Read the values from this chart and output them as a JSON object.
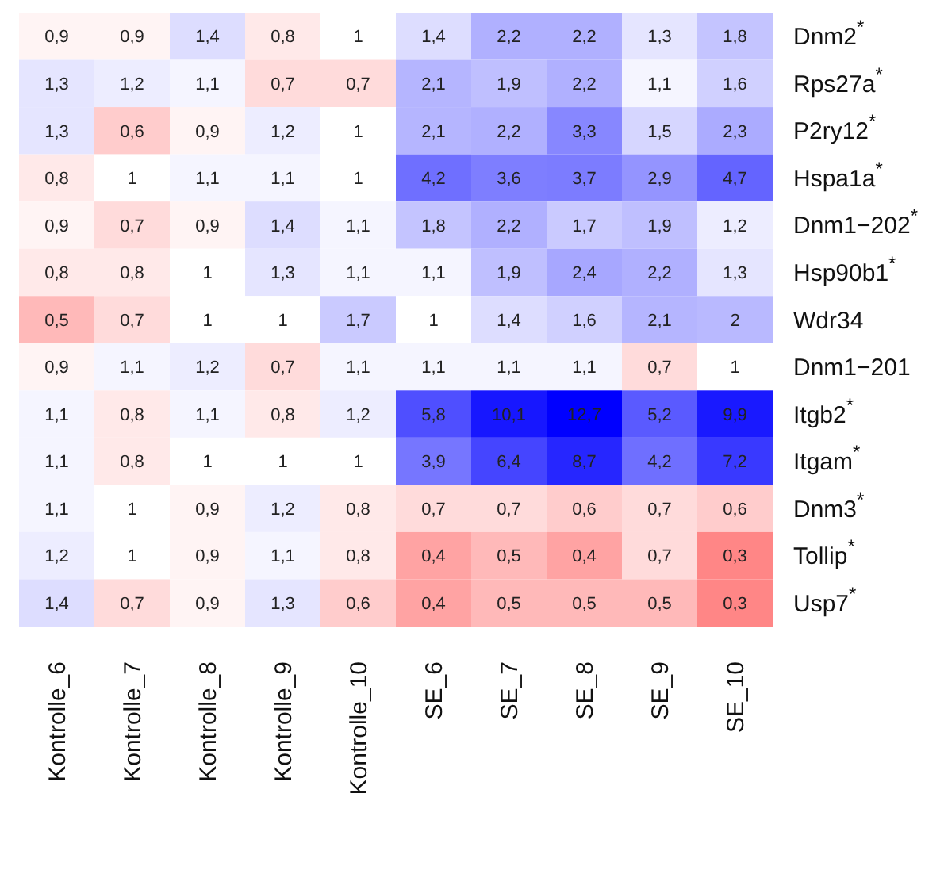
{
  "chart_data": {
    "type": "heatmap",
    "categories": [
      "Kontrolle_6",
      "Kontrolle_7",
      "Kontrolle_8",
      "Kontrolle_9",
      "Kontrolle_10",
      "SE_6",
      "SE_7",
      "SE_8",
      "SE_9",
      "SE_10"
    ],
    "y_categories": [
      "Dnm2$^{*}$",
      "Rps27a$^{*}$",
      "P2ry12$^{*}$",
      "Hspa1a$^{*}$",
      "Dnm1−202$^{*}$",
      "Hsp90b1$^{*}$",
      "Wdr34",
      "Dnm1−201",
      "Itgb2$^{*}$",
      "Itgam$^{*}$",
      "Dnm3$^{*}$",
      "Tollip$^{*}$",
      "Usp7$^{*}$"
    ],
    "cells": [
      [
        0.9,
        0.9,
        1.4,
        0.8,
        1,
        1.4,
        2.2,
        2.2,
        1.3,
        1.8
      ],
      [
        1.3,
        1.2,
        1.1,
        0.7,
        0.7,
        2.1,
        1.9,
        2.2,
        1.1,
        1.6
      ],
      [
        1.3,
        0.6,
        0.9,
        1.2,
        1,
        2.1,
        2.2,
        3.3,
        1.5,
        2.3
      ],
      [
        0.8,
        1,
        1.1,
        1.1,
        1,
        4.2,
        3.6,
        3.7,
        2.9,
        4.7
      ],
      [
        0.9,
        0.7,
        0.9,
        1.4,
        1.1,
        1.8,
        2.2,
        1.7,
        1.9,
        1.2
      ],
      [
        0.8,
        0.8,
        1,
        1.3,
        1.1,
        1.1,
        1.9,
        2.4,
        2.2,
        1.3
      ],
      [
        0.5,
        0.7,
        1,
        1,
        1.7,
        1,
        1.4,
        1.6,
        2.1,
        2
      ],
      [
        0.9,
        1.1,
        1.2,
        0.7,
        1.1,
        1.1,
        1.1,
        1.1,
        0.7,
        1
      ],
      [
        1.1,
        0.8,
        1.1,
        0.8,
        1.2,
        5.8,
        10.1,
        12.7,
        5.2,
        9.9
      ],
      [
        1.1,
        0.8,
        1,
        1,
        1,
        3.9,
        6.4,
        8.7,
        4.2,
        7.2
      ],
      [
        1.1,
        1,
        0.9,
        1.2,
        0.8,
        0.7,
        0.7,
        0.6,
        0.7,
        0.6
      ],
      [
        1.2,
        1,
        0.9,
        1.1,
        0.8,
        0.4,
        0.5,
        0.4,
        0.7,
        0.3
      ],
      [
        1.4,
        0.7,
        0.9,
        1.3,
        0.6,
        0.4,
        0.5,
        0.5,
        0.5,
        0.3
      ]
    ],
    "cell_labels": [
      [
        "0,9",
        "0,9",
        "1,4",
        "0,8",
        "1",
        "1,4",
        "2,2",
        "2,2",
        "1,3",
        "1,8"
      ],
      [
        "1,3",
        "1,2",
        "1,1",
        "0,7",
        "0,7",
        "2,1",
        "1,9",
        "2,2",
        "1,1",
        "1,6"
      ],
      [
        "1,3",
        "0,6",
        "0,9",
        "1,2",
        "1",
        "2,1",
        "2,2",
        "3,3",
        "1,5",
        "2,3"
      ],
      [
        "0,8",
        "1",
        "1,1",
        "1,1",
        "1",
        "4,2",
        "3,6",
        "3,7",
        "2,9",
        "4,7"
      ],
      [
        "0,9",
        "0,7",
        "0,9",
        "1,4",
        "1,1",
        "1,8",
        "2,2",
        "1,7",
        "1,9",
        "1,2"
      ],
      [
        "0,8",
        "0,8",
        "1",
        "1,3",
        "1,1",
        "1,1",
        "1,9",
        "2,4",
        "2,2",
        "1,3"
      ],
      [
        "0,5",
        "0,7",
        "1",
        "1",
        "1,7",
        "1",
        "1,4",
        "1,6",
        "2,1",
        "2"
      ],
      [
        "0,9",
        "1,1",
        "1,2",
        "0,7",
        "1,1",
        "1,1",
        "1,1",
        "1,1",
        "0,7",
        "1"
      ],
      [
        "1,1",
        "0,8",
        "1,1",
        "0,8",
        "1,2",
        "5,8",
        "10,1",
        "12,7",
        "5,2",
        "9,9"
      ],
      [
        "1,1",
        "0,8",
        "1",
        "1",
        "1",
        "3,9",
        "6,4",
        "8,7",
        "4,2",
        "7,2"
      ],
      [
        "1,1",
        "1",
        "0,9",
        "1,2",
        "0,8",
        "0,7",
        "0,7",
        "0,6",
        "0,7",
        "0,6"
      ],
      [
        "1,2",
        "1",
        "0,9",
        "1,1",
        "0,8",
        "0,4",
        "0,5",
        "0,4",
        "0,7",
        "0,3"
      ],
      [
        "1,4",
        "0,7",
        "0,9",
        "1,3",
        "0,6",
        "0,4",
        "0,5",
        "0,5",
        "0,5",
        "0,3"
      ]
    ]
  }
}
